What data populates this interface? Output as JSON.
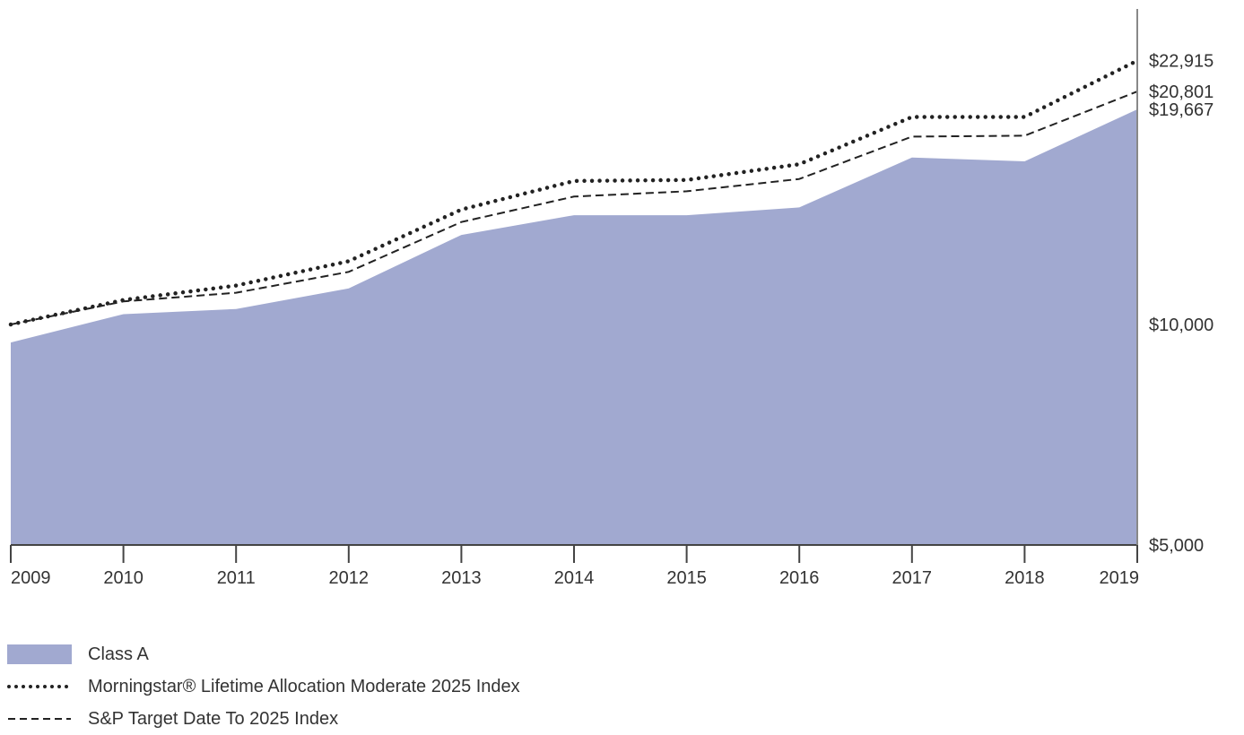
{
  "chart_data": {
    "type": "area",
    "x": [
      "2009",
      "2010",
      "2011",
      "2012",
      "2013",
      "2014",
      "2015",
      "2016",
      "2017",
      "2018",
      "2019"
    ],
    "ylim": [
      5000,
      24500
    ],
    "y_scale": "log",
    "y_ticks": [
      5000,
      10000
    ],
    "y_tick_labels": [
      "$5,000",
      "$10,000"
    ],
    "end_labels": [
      "$22,915",
      "$20,801",
      "$19,667"
    ],
    "series": [
      {
        "name": "Class A",
        "style": "area",
        "color": "#a1a9d0",
        "values": [
          9450,
          10330,
          10500,
          11200,
          13250,
          14100,
          14100,
          14450,
          16900,
          16700,
          19667
        ]
      },
      {
        "name": "Morningstar® Lifetime Allocation Moderate 2025 Index",
        "style": "dotted",
        "color": "#222222",
        "values": [
          10000,
          10800,
          11300,
          12200,
          14350,
          15700,
          15750,
          16550,
          19200,
          19200,
          22915
        ]
      },
      {
        "name": "S&P Target Date To 2025 Index",
        "style": "dashed",
        "color": "#222222",
        "values": [
          10000,
          10750,
          11050,
          11800,
          13800,
          14950,
          15200,
          15800,
          18050,
          18100,
          20801
        ]
      }
    ],
    "legend_position": "bottom-left",
    "grid": false
  }
}
